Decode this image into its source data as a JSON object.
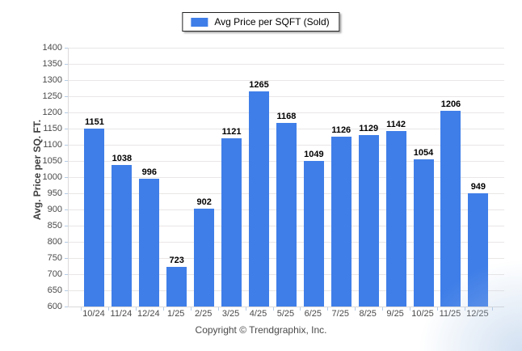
{
  "legend": {
    "label": "Avg Price per SQFT (Sold)"
  },
  "chart_data": {
    "type": "bar",
    "title": "",
    "categories": [
      "10/24",
      "11/24",
      "12/24",
      "1/25",
      "2/25",
      "3/25",
      "4/25",
      "5/25",
      "6/25",
      "7/25",
      "8/25",
      "9/25",
      "10/25",
      "11/25",
      "12/25"
    ],
    "values": [
      1151,
      1038,
      996,
      723,
      902,
      1121,
      1265,
      1168,
      1049,
      1126,
      1129,
      1142,
      1054,
      1206,
      949
    ],
    "xlabel": "",
    "ylabel": "Avg. Price per SQ. FT.",
    "ylim": [
      600,
      1400
    ],
    "ytick_step": 50,
    "grid": "horizontal",
    "legend_entries": [
      "Avg Price per SQFT (Sold)"
    ],
    "legend_position": "top-center"
  },
  "footer": {
    "copyright": "Copyright © Trendgraphix, Inc."
  },
  "colors": {
    "bar_fill": "#3F7EE8",
    "gridline": "#e9e6e6",
    "axis_line": "#dcd9d9",
    "tick_mark": "#b5cbe4",
    "value_label": "#000000",
    "axis_text": "#4a4a4a",
    "y_title": "#3f3f3f",
    "copyright_text": "#4a4a4a",
    "legend_border": "#222222",
    "background_tint": "#cdddf0"
  }
}
